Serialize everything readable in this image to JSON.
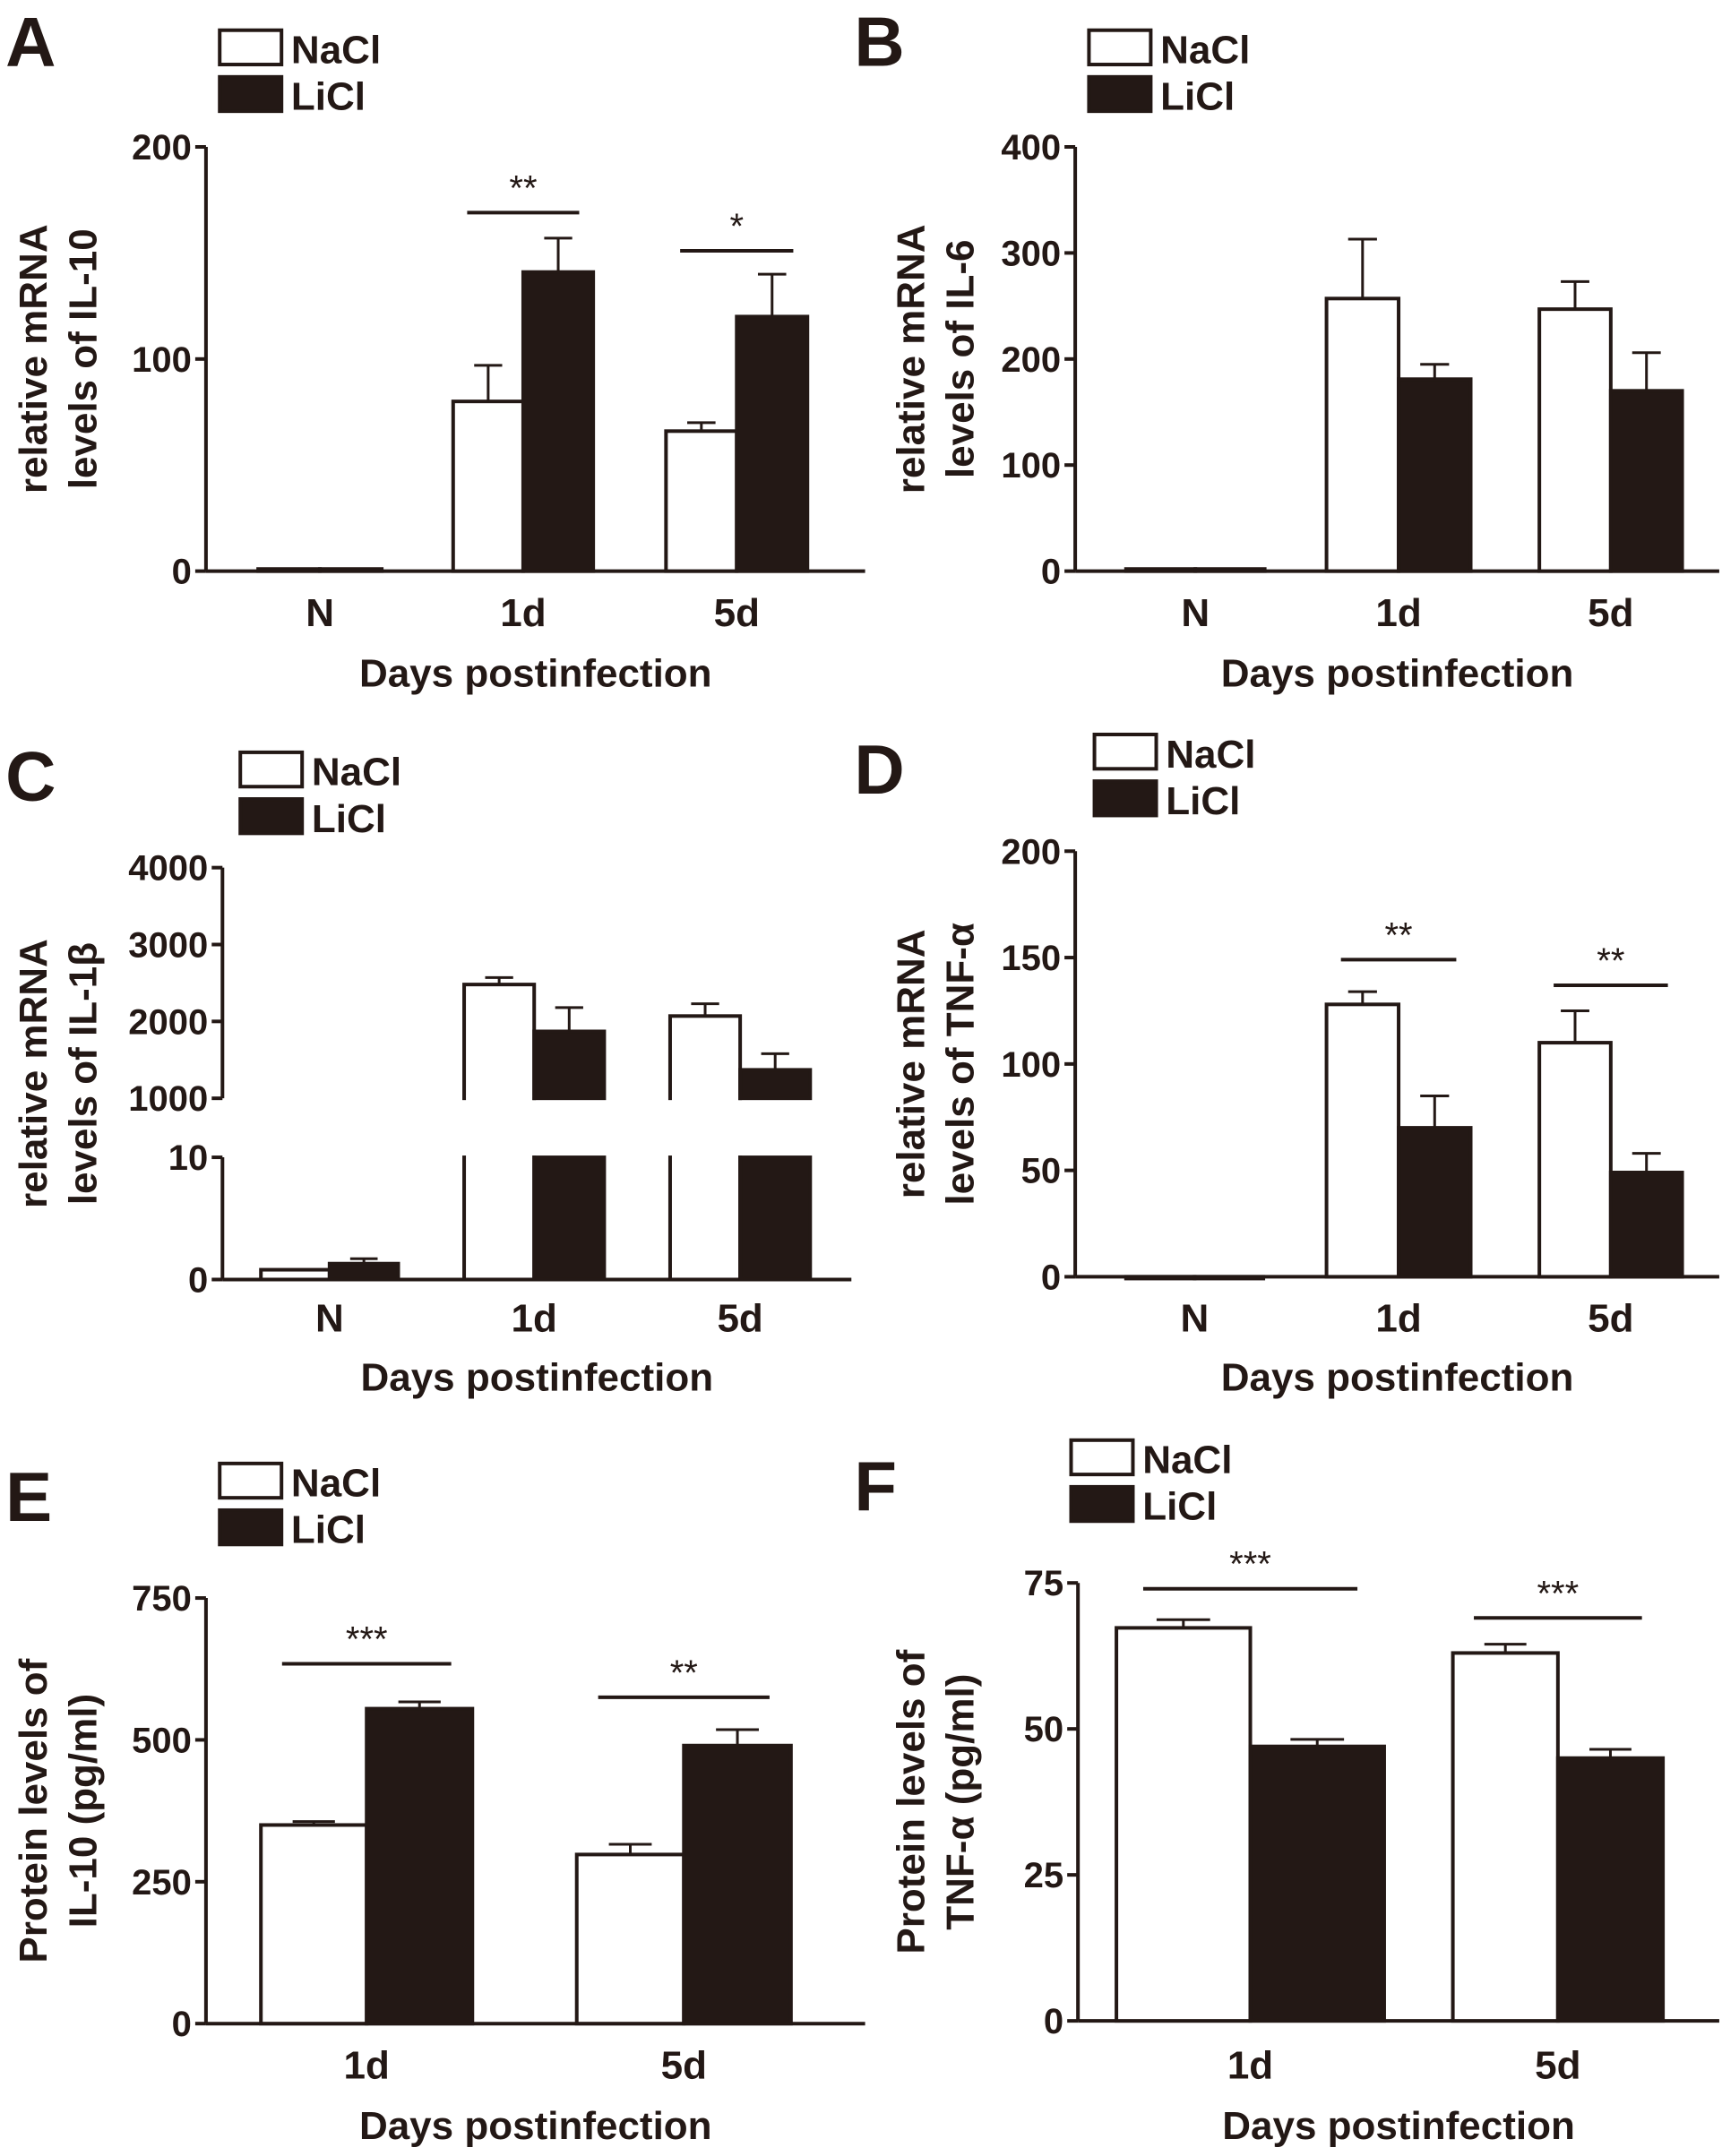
{
  "figure": {
    "legend": [
      {
        "name": "NaCl",
        "color": "#ffffff"
      },
      {
        "name": "LiCl",
        "color": "#231815"
      }
    ],
    "ink_color": "#231815"
  },
  "chart_data": [
    {
      "panel": "A",
      "type": "bar",
      "title": "",
      "ylabel_lines": [
        "relative mRNA",
        "levels of IL-10"
      ],
      "xlabel": "Days postinfection",
      "categories": [
        "N",
        "1d",
        "5d"
      ],
      "ylim": [
        0,
        200
      ],
      "yticks": [
        0,
        100,
        200
      ],
      "series": [
        {
          "name": "NaCl",
          "values": [
            1,
            80,
            66
          ],
          "errors": [
            0,
            17,
            4
          ]
        },
        {
          "name": "LiCl",
          "values": [
            1,
            141,
            120
          ],
          "errors": [
            0,
            16,
            20
          ]
        }
      ],
      "significance": [
        {
          "category": "1d",
          "label": "**",
          "y": 169
        },
        {
          "category": "5d",
          "label": "*",
          "y": 151
        }
      ],
      "legend_position": "top-left"
    },
    {
      "panel": "B",
      "type": "bar",
      "ylabel_lines": [
        "relative mRNA",
        "levels of IL-6"
      ],
      "xlabel": "Days postinfection",
      "categories": [
        "N",
        "1d",
        "5d"
      ],
      "ylim": [
        0,
        400
      ],
      "yticks": [
        0,
        100,
        200,
        300,
        400
      ],
      "series": [
        {
          "name": "NaCl",
          "values": [
            2,
            257,
            247
          ],
          "errors": [
            0,
            56,
            26
          ]
        },
        {
          "name": "LiCl",
          "values": [
            2,
            181,
            170
          ],
          "errors": [
            0,
            14,
            36
          ]
        }
      ],
      "significance": [],
      "legend_position": "top-left"
    },
    {
      "panel": "C",
      "type": "bar",
      "ylabel_lines": [
        "relative mRNA",
        "levels of IL-1β"
      ],
      "xlabel": "Days postinfection",
      "categories": [
        "N",
        "1d",
        "5d"
      ],
      "axis_break": {
        "lower": [
          0,
          10
        ],
        "upper": [
          1000,
          4000
        ]
      },
      "yticks_lower": [
        0,
        10
      ],
      "yticks_upper": [
        1000,
        2000,
        3000,
        4000
      ],
      "series": [
        {
          "name": "NaCl",
          "values": [
            0.8,
            2480,
            2070
          ],
          "errors": [
            0,
            90,
            160
          ]
        },
        {
          "name": "LiCl",
          "values": [
            1.3,
            1870,
            1370
          ],
          "errors": [
            0.4,
            310,
            210
          ]
        }
      ],
      "significance": [],
      "legend_position": "top-left"
    },
    {
      "panel": "D",
      "type": "bar",
      "ylabel_lines": [
        "relative mRNA",
        "levels of TNF-α"
      ],
      "xlabel": "Days postinfection",
      "categories": [
        "N",
        "1d",
        "5d"
      ],
      "ylim": [
        0,
        200
      ],
      "yticks": [
        0,
        50,
        100,
        150,
        200
      ],
      "series": [
        {
          "name": "NaCl",
          "values": [
            0,
            128,
            110
          ],
          "errors": [
            0,
            6,
            15
          ]
        },
        {
          "name": "LiCl",
          "values": [
            0,
            70,
            49
          ],
          "errors": [
            0,
            15,
            9
          ]
        }
      ],
      "significance": [
        {
          "category": "1d",
          "label": "**",
          "y": 149
        },
        {
          "category": "5d",
          "label": "**",
          "y": 137
        }
      ],
      "legend_position": "top-left"
    },
    {
      "panel": "E",
      "type": "bar",
      "ylabel_lines": [
        "Protein levels of",
        "IL-10 (pg/ml)"
      ],
      "xlabel": "Days postinfection",
      "categories": [
        "1d",
        "5d"
      ],
      "ylim": [
        0,
        750
      ],
      "yticks": [
        0,
        250,
        500,
        750
      ],
      "series": [
        {
          "name": "NaCl",
          "values": [
            350,
            298
          ],
          "errors": [
            6,
            18
          ]
        },
        {
          "name": "LiCl",
          "values": [
            555,
            490
          ],
          "errors": [
            12,
            28
          ]
        }
      ],
      "significance": [
        {
          "category": "1d",
          "label": "***",
          "y": 634
        },
        {
          "category": "5d",
          "label": "**",
          "y": 575
        }
      ],
      "legend_position": "top-left"
    },
    {
      "panel": "F",
      "type": "bar",
      "ylabel_lines": [
        "Protein levels of",
        "TNF-α (pg/ml)"
      ],
      "xlabel": "Days postinfection",
      "categories": [
        "1d",
        "5d"
      ],
      "ylim": [
        0,
        75
      ],
      "yticks": [
        0,
        25,
        50,
        75
      ],
      "series": [
        {
          "name": "NaCl",
          "values": [
            67.3,
            63
          ],
          "errors": [
            1.4,
            1.5
          ]
        },
        {
          "name": "LiCl",
          "values": [
            47,
            45
          ],
          "errors": [
            1.2,
            1.5
          ]
        }
      ],
      "significance": [
        {
          "category": "1d",
          "label": "***",
          "y": 74
        },
        {
          "category": "5d",
          "label": "***",
          "y": 69
        }
      ],
      "legend_position": "top-left"
    }
  ]
}
